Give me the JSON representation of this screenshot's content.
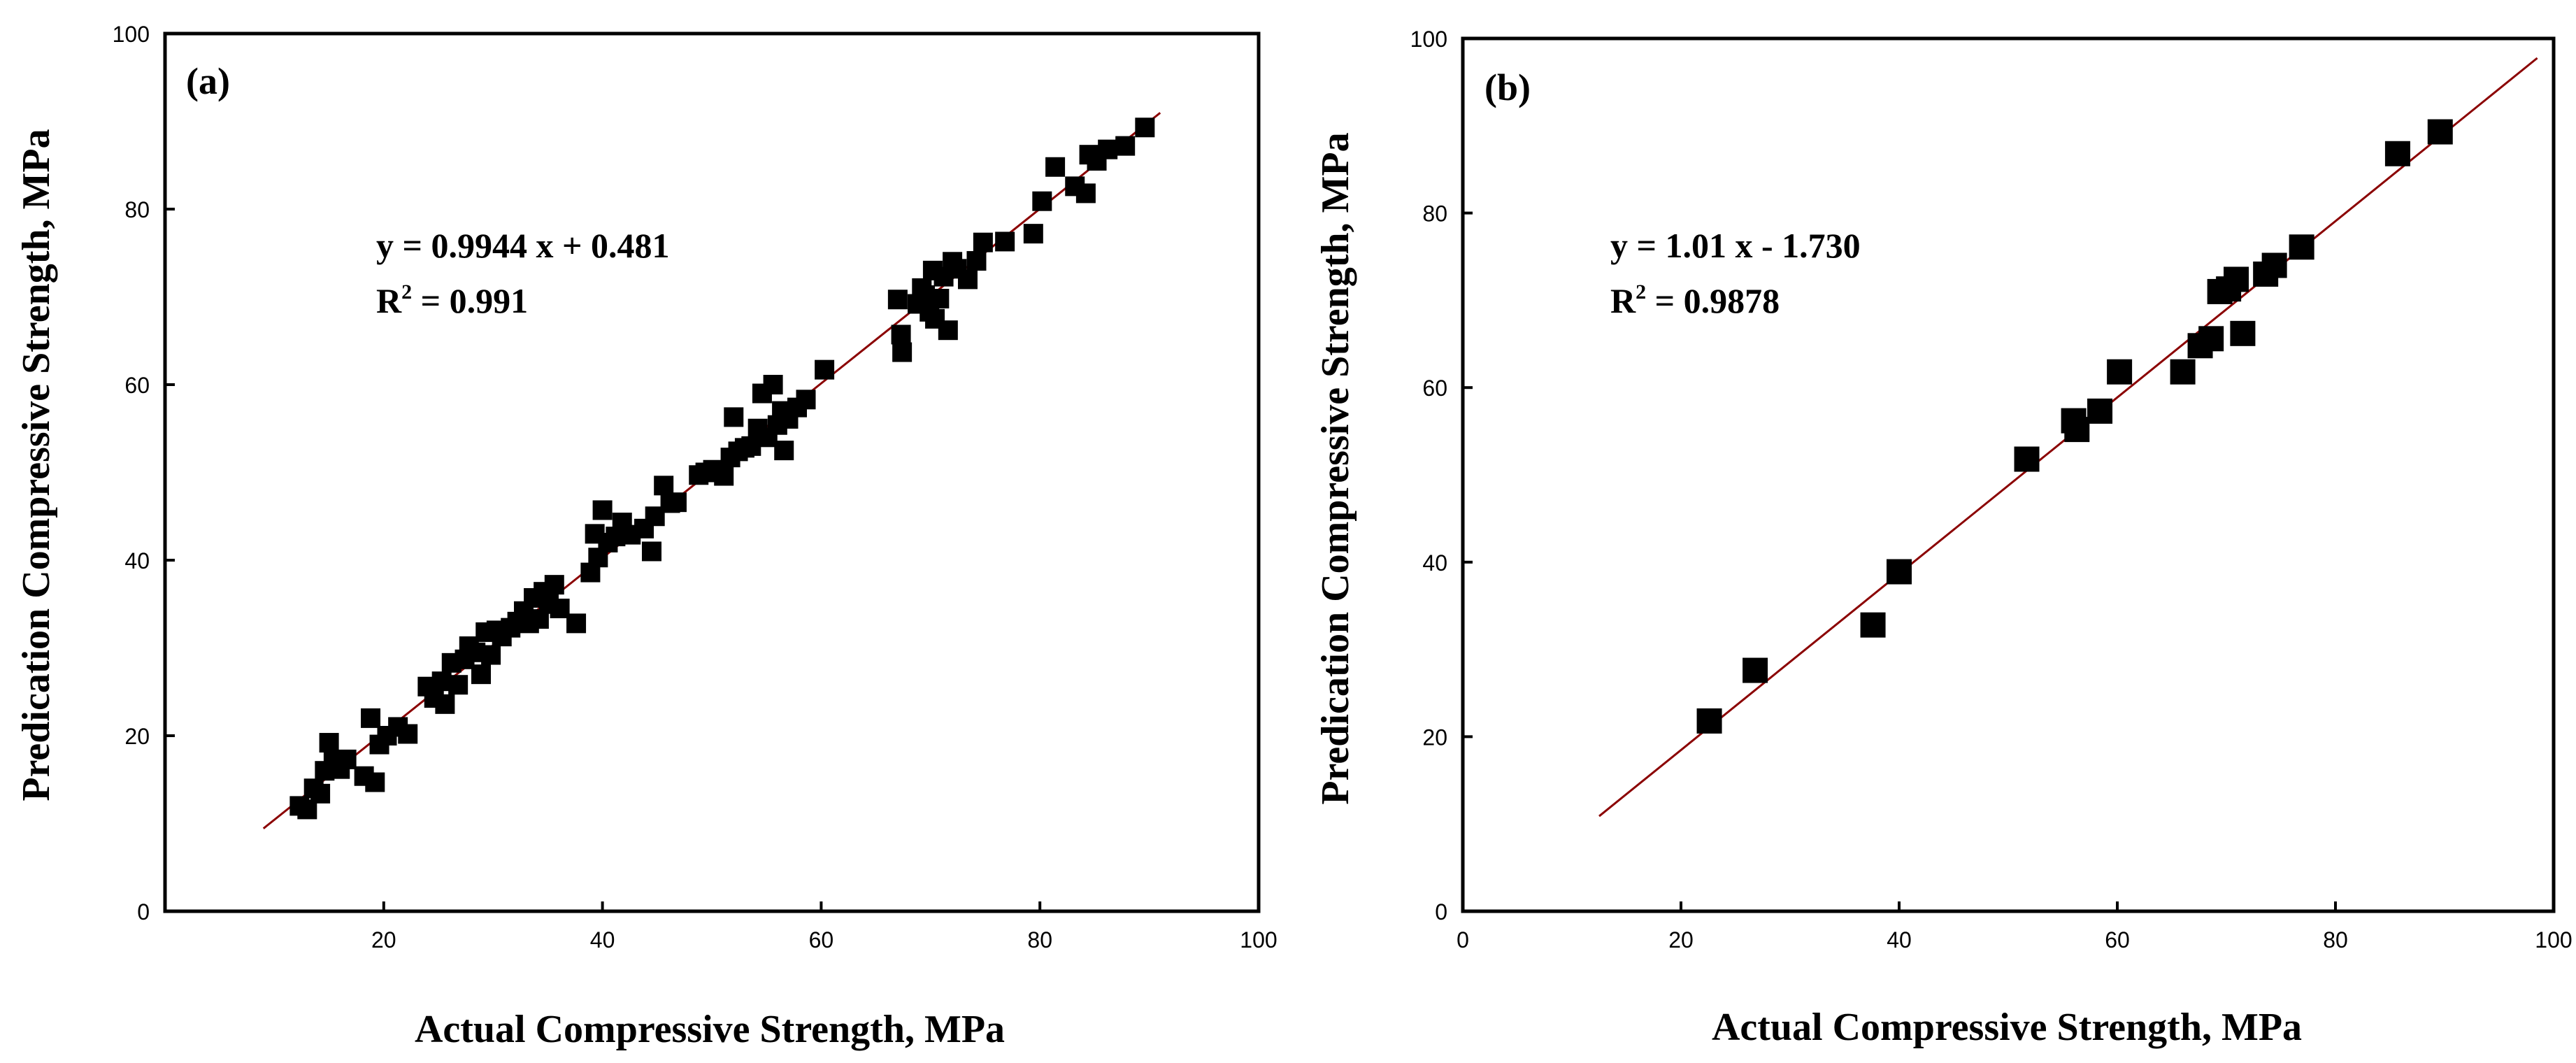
{
  "chart_data": [
    {
      "type": "scatter",
      "panel_label": "(a)",
      "xlabel": "Actual Compressive Strength, MPa",
      "ylabel": "Predication Compressive Strength, MPa",
      "xlim": [
        0,
        100
      ],
      "ylim": [
        0,
        100
      ],
      "xticks": [
        20,
        40,
        60,
        80,
        100
      ],
      "yticks": [
        0,
        20,
        40,
        60,
        80,
        100
      ],
      "grid": false,
      "equation": "y = 0.9944 x + 0.481",
      "r2_prefix": "R",
      "r2_exp": "2",
      "r2_value": " = 0.991",
      "marker_color": "#000000",
      "fit_color": "#8b0000",
      "fit": {
        "slope": 0.9944,
        "intercept": 0.481,
        "x_range": [
          9,
          91
        ]
      },
      "points": [
        [
          12.3,
          12
        ],
        [
          13,
          11.6
        ],
        [
          13.6,
          14
        ],
        [
          14.2,
          13.4
        ],
        [
          14.6,
          16
        ],
        [
          15,
          19.2
        ],
        [
          15.4,
          17
        ],
        [
          16,
          16.2
        ],
        [
          16.6,
          17.3
        ],
        [
          18.2,
          15.4
        ],
        [
          18.8,
          22
        ],
        [
          19.2,
          14.7
        ],
        [
          19.6,
          19
        ],
        [
          20.3,
          20
        ],
        [
          21.3,
          21
        ],
        [
          22.2,
          20.2
        ],
        [
          24,
          25.6
        ],
        [
          24.6,
          24.3
        ],
        [
          25.3,
          26.2
        ],
        [
          25.6,
          23.6
        ],
        [
          26.2,
          28.3
        ],
        [
          26.8,
          25.8
        ],
        [
          27.4,
          28.7
        ],
        [
          27.8,
          30.2
        ],
        [
          28.4,
          29.5
        ],
        [
          28.9,
          27
        ],
        [
          29.3,
          31.8
        ],
        [
          29.8,
          29.2
        ],
        [
          30.3,
          32
        ],
        [
          30.8,
          31.3
        ],
        [
          31.6,
          32.3
        ],
        [
          32.2,
          33
        ],
        [
          32.8,
          34.2
        ],
        [
          33.3,
          32.8
        ],
        [
          33.7,
          35.7
        ],
        [
          34.2,
          33.3
        ],
        [
          34.6,
          36.4
        ],
        [
          35.1,
          35
        ],
        [
          35.6,
          37.2
        ],
        [
          36.1,
          34.5
        ],
        [
          37.6,
          32.8
        ],
        [
          38.9,
          38.6
        ],
        [
          39.3,
          43
        ],
        [
          39.6,
          40.3
        ],
        [
          40,
          45.7
        ],
        [
          40.5,
          42
        ],
        [
          41.2,
          42.7
        ],
        [
          41.8,
          44.3
        ],
        [
          42.6,
          42.9
        ],
        [
          43.8,
          43.6
        ],
        [
          44.5,
          41
        ],
        [
          44.8,
          45
        ],
        [
          45.6,
          48.5
        ],
        [
          46.2,
          46.5
        ],
        [
          46.8,
          46.6
        ],
        [
          48.8,
          49.7
        ],
        [
          49.4,
          50
        ],
        [
          50.1,
          50.3
        ],
        [
          51.1,
          49.6
        ],
        [
          51.7,
          51.7
        ],
        [
          52,
          56.3
        ],
        [
          52.4,
          52.4
        ],
        [
          53,
          52.8
        ],
        [
          53.6,
          53
        ],
        [
          54.2,
          55
        ],
        [
          54.6,
          59
        ],
        [
          55.1,
          54
        ],
        [
          55.6,
          60
        ],
        [
          56,
          55.4
        ],
        [
          56.4,
          57
        ],
        [
          56.6,
          52.5
        ],
        [
          57,
          56.1
        ],
        [
          57.8,
          57.4
        ],
        [
          58.6,
          58.3
        ],
        [
          60.3,
          61.7
        ],
        [
          67,
          69.7
        ],
        [
          67.3,
          65.7
        ],
        [
          67.4,
          63.7
        ],
        [
          68.8,
          69.2
        ],
        [
          69.2,
          71
        ],
        [
          69.5,
          70.2
        ],
        [
          69.9,
          68.3
        ],
        [
          70.2,
          73
        ],
        [
          70.4,
          67.5
        ],
        [
          70.8,
          69.8
        ],
        [
          71.2,
          72.3
        ],
        [
          71.6,
          66.2
        ],
        [
          72,
          74
        ],
        [
          72.4,
          73.2
        ],
        [
          73.4,
          72
        ],
        [
          74.2,
          74.1
        ],
        [
          74.8,
          76.2
        ],
        [
          76.8,
          76.3
        ],
        [
          79.4,
          77.2
        ],
        [
          80.2,
          80.9
        ],
        [
          81.4,
          84.8
        ],
        [
          83.2,
          82.6
        ],
        [
          84.2,
          81.8
        ],
        [
          84.5,
          86.2
        ],
        [
          85.2,
          85.5
        ],
        [
          86.2,
          86.8
        ],
        [
          87.8,
          87.2
        ],
        [
          89.6,
          89.3
        ]
      ]
    },
    {
      "type": "scatter",
      "panel_label": "(b)",
      "xlabel": "Actual Compressive Strength, MPa",
      "ylabel": "Predication Compressive Strength, MPa",
      "xlim": [
        0,
        100
      ],
      "ylim": [
        0,
        100
      ],
      "xticks": [
        0,
        20,
        40,
        60,
        80,
        100
      ],
      "yticks": [
        0,
        20,
        40,
        60,
        80,
        100
      ],
      "grid": false,
      "equation": "y = 1.01 x - 1.730",
      "r2_prefix": "R",
      "r2_exp": "2",
      "r2_value": " = 0.9878",
      "marker_color": "#000000",
      "fit_color": "#8b0000",
      "fit": {
        "slope": 1.01,
        "intercept": -1.73,
        "x_range": [
          12.5,
          98.5
        ]
      },
      "points": [
        [
          22.6,
          21.8
        ],
        [
          26.8,
          27.6
        ],
        [
          37.6,
          32.8
        ],
        [
          40,
          38.9
        ],
        [
          51.7,
          51.8
        ],
        [
          56,
          56.2
        ],
        [
          56.3,
          55.2
        ],
        [
          58.4,
          57.3
        ],
        [
          60.2,
          61.8
        ],
        [
          66,
          61.8
        ],
        [
          67.6,
          64.8
        ],
        [
          68.6,
          65.6
        ],
        [
          69.4,
          71
        ],
        [
          70.2,
          71.3
        ],
        [
          70.9,
          72.4
        ],
        [
          71.5,
          66.2
        ],
        [
          73.6,
          73
        ],
        [
          74.4,
          74
        ],
        [
          76.9,
          76.1
        ],
        [
          85.7,
          86.8
        ],
        [
          89.6,
          89.3
        ]
      ]
    }
  ]
}
